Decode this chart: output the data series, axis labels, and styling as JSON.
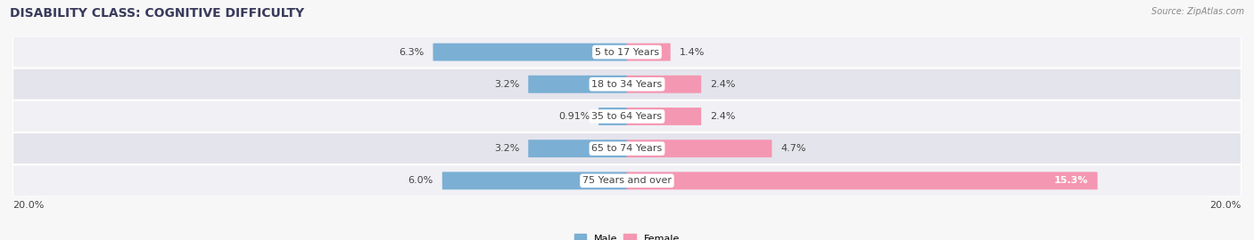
{
  "title": "DISABILITY CLASS: COGNITIVE DIFFICULTY",
  "source": "Source: ZipAtlas.com",
  "categories": [
    "5 to 17 Years",
    "18 to 34 Years",
    "35 to 64 Years",
    "65 to 74 Years",
    "75 Years and over"
  ],
  "male_values": [
    6.3,
    3.2,
    0.91,
    3.2,
    6.0
  ],
  "female_values": [
    1.4,
    2.4,
    2.4,
    4.7,
    15.3
  ],
  "male_color": "#7bafd4",
  "female_color": "#f497b2",
  "row_bg_light": "#f0f0f5",
  "row_bg_dark": "#e4e4ec",
  "max_val": 20.0,
  "axis_label_left": "20.0%",
  "axis_label_right": "20.0%",
  "title_fontsize": 10,
  "label_fontsize": 8,
  "tick_fontsize": 8,
  "bar_height": 0.52,
  "title_color": "#3a3a5c",
  "label_color": "#444444",
  "source_color": "#888888"
}
